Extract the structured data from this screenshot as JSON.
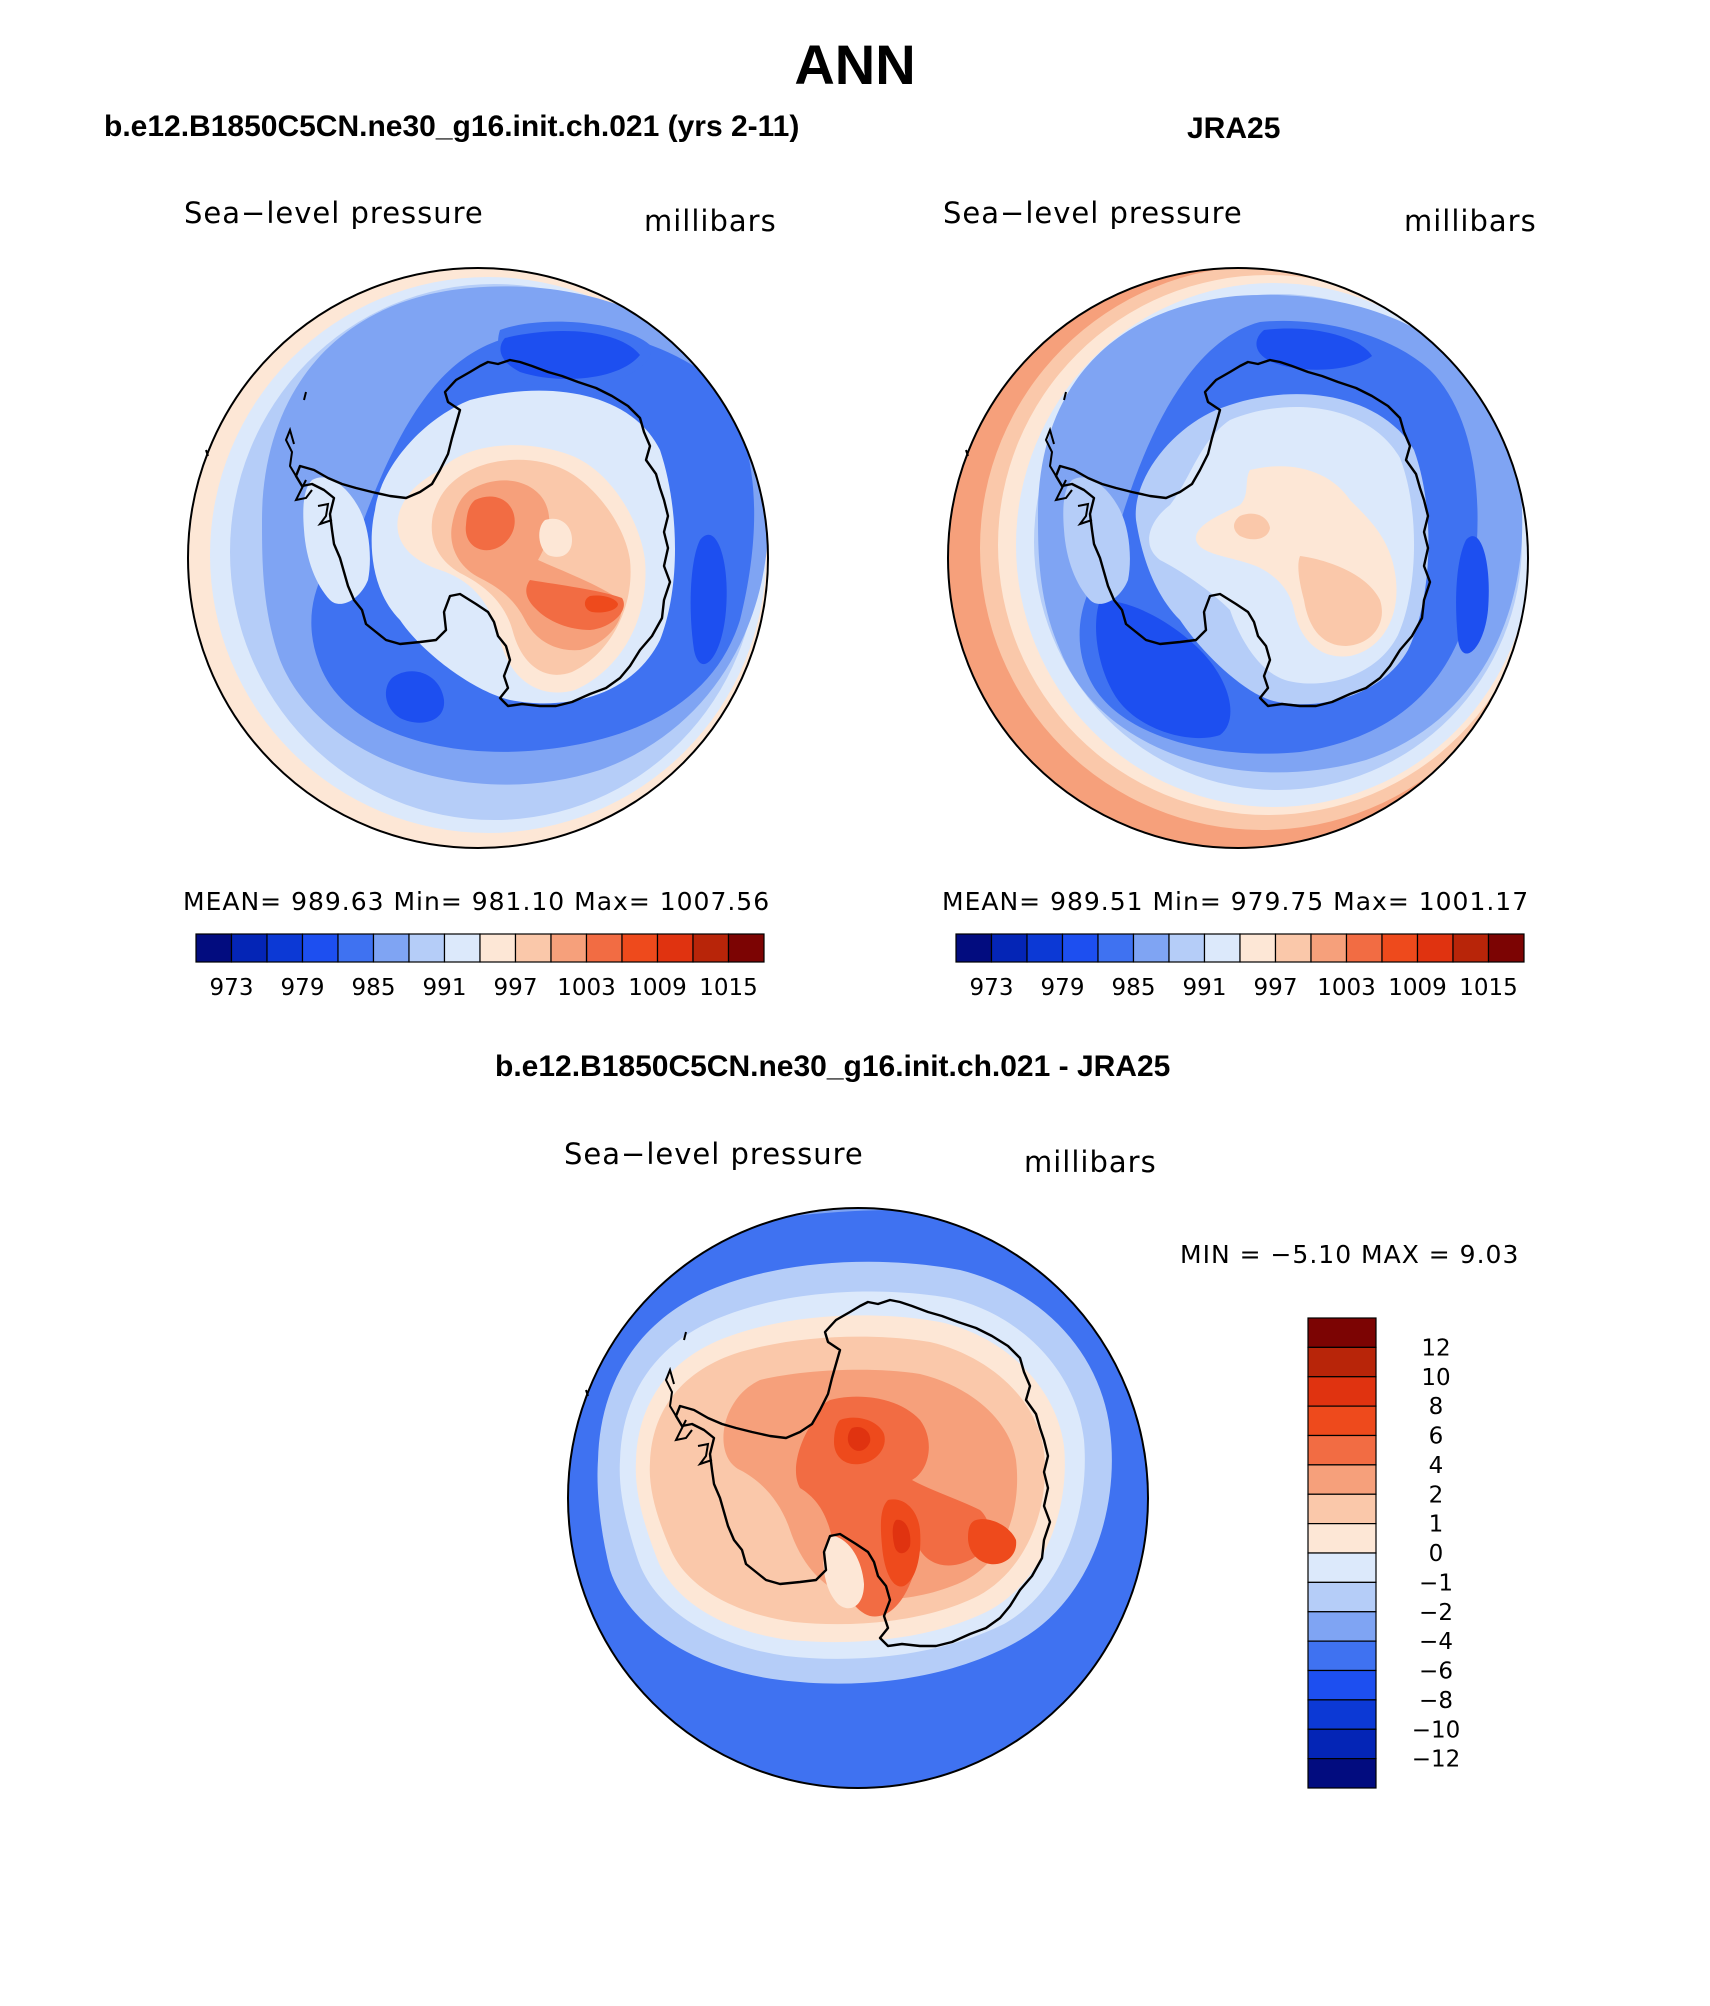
{
  "figure": {
    "title": "ANN",
    "panel1_title": "b.e12.B1850C5CN.ne30_g16.init.ch.021 (yrs 2-11)",
    "panel2_title": "JRA25",
    "panel3_title": "b.e12.B1850C5CN.ne30_g16.init.ch.021 - JRA25"
  },
  "colors": {
    "abs_scale": [
      "#020c7f",
      "#0425b6",
      "#0c39d5",
      "#1d4ff0",
      "#3f72f1",
      "#7fa4f3",
      "#b5cdf8",
      "#dce9fb",
      "#fde7d6",
      "#fac8aa",
      "#f6a07b",
      "#f26c43",
      "#ee4a1c",
      "#e03310",
      "#b82509",
      "#7c0403"
    ],
    "diff_scale": [
      "#020c7f",
      "#0425b6",
      "#0c39d5",
      "#1d4ff0",
      "#3f72f1",
      "#7fa4f3",
      "#b5cdf8",
      "#dce9fb",
      "#fde7d6",
      "#fac8aa",
      "#f6a07b",
      "#f26c43",
      "#ee4a1c",
      "#e03310",
      "#b82509",
      "#7c0403"
    ]
  },
  "chart_data": [
    {
      "type": "heatmap",
      "projection": "polar stereographic (south)",
      "title": "b.e12.B1850C5CN.ne30_g16.init.ch.021 (yrs 2-11)",
      "left_label": "Sea−level pressure",
      "right_label": "millibars",
      "stats": {
        "mean": "989.63",
        "min": "981.10",
        "max": "1007.56"
      },
      "stats_text": "MEAN= 989.63   Min= 981.10   Max= 1007.56",
      "colorbar_levels": [
        "973",
        "979",
        "985",
        "991",
        "997",
        "1003",
        "1009",
        "1015"
      ],
      "contour_levels": [
        970,
        973,
        976,
        979,
        982,
        985,
        988,
        991,
        994,
        997,
        1000,
        1003,
        1006,
        1009,
        1012,
        1015
      ],
      "colorbar_orientation": "horizontal",
      "colorbar_placement": "bottom"
    },
    {
      "type": "heatmap",
      "projection": "polar stereographic (south)",
      "title": "JRA25",
      "left_label": "Sea−level pressure",
      "right_label": "millibars",
      "stats": {
        "mean": "989.51",
        "min": "979.75",
        "max": "1001.17"
      },
      "stats_text": "MEAN= 989.51   Min= 979.75   Max= 1001.17",
      "colorbar_levels": [
        "973",
        "979",
        "985",
        "991",
        "997",
        "1003",
        "1009",
        "1015"
      ],
      "contour_levels": [
        970,
        973,
        976,
        979,
        982,
        985,
        988,
        991,
        994,
        997,
        1000,
        1003,
        1006,
        1009,
        1012,
        1015
      ],
      "colorbar_orientation": "horizontal",
      "colorbar_placement": "bottom"
    },
    {
      "type": "heatmap",
      "projection": "polar stereographic (south)",
      "title": "b.e12.B1850C5CN.ne30_g16.init.ch.021 - JRA25",
      "left_label": "Sea−level pressure",
      "right_label": "millibars",
      "stats": {
        "min": "−5.10",
        "max": "9.03"
      },
      "stats_text": "MIN =   −5.10  MAX =     9.03",
      "colorbar_levels": [
        "12",
        "10",
        "8",
        "6",
        "4",
        "2",
        "1",
        "0",
        "−1",
        "−2",
        "−4",
        "−6",
        "−8",
        "−10",
        "−12"
      ],
      "contour_levels": [
        -12,
        -10,
        -8,
        -6,
        -4,
        -2,
        -1,
        0,
        1,
        2,
        4,
        6,
        8,
        10,
        12
      ],
      "colorbar_orientation": "vertical",
      "colorbar_placement": "right"
    }
  ]
}
